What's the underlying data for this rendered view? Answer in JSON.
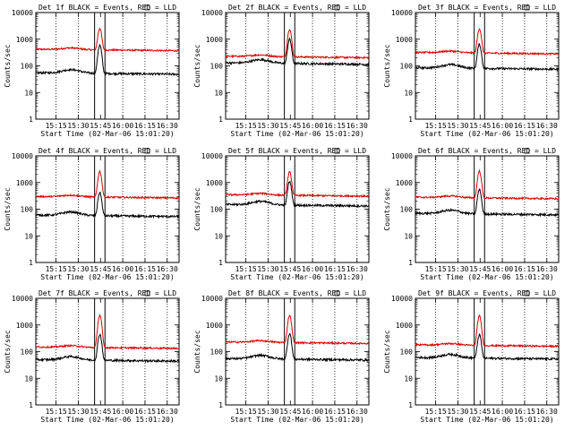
{
  "chart_data": {
    "type": "line",
    "start_time_label": "Start Time (02-Mar-06 15:01:20)",
    "ylabel": "Counts/sec",
    "y_scale": "log",
    "ylim": [
      1,
      10000
    ],
    "y_ticks": [
      {
        "value": 1,
        "label": "1"
      },
      {
        "value": 10,
        "label": "10"
      },
      {
        "value": 100,
        "label": "100"
      },
      {
        "value": 1000,
        "label": "1000"
      },
      {
        "value": 10000,
        "label": "10000"
      }
    ],
    "xlim": [
      "15:01:20",
      "16:38:00"
    ],
    "x_ticks": [
      "15:15",
      "15:30",
      "15:45",
      "16:00",
      "16:15",
      "16:30"
    ],
    "x_gridlines": [
      "15:15",
      "15:30",
      "16:00",
      "16:15",
      "16:30"
    ],
    "bracket_times": [
      "15:41",
      "15:48"
    ],
    "panels": [
      {
        "title": "Det 1f BLACK = Events, RED = LLD",
        "red_base": 420,
        "red_peak": 2600,
        "black_base": 55,
        "black_peak": 600
      },
      {
        "title": "Det 2f BLACK = Events, RED = LLD",
        "red_base": 230,
        "red_peak": 2400,
        "black_base": 130,
        "black_peak": 1000
      },
      {
        "title": "Det 3f BLACK = Events, RED = LLD",
        "red_base": 320,
        "red_peak": 2500,
        "black_base": 85,
        "black_peak": 650
      },
      {
        "title": "Det 4f BLACK = Events, RED = LLD",
        "red_base": 300,
        "red_peak": 2600,
        "black_base": 60,
        "black_peak": 420
      },
      {
        "title": "Det 5f BLACK = Events, RED = LLD",
        "red_base": 350,
        "red_peak": 2500,
        "black_base": 150,
        "black_peak": 1100
      },
      {
        "title": "Det 6f BLACK = Events, RED = LLD",
        "red_base": 280,
        "red_peak": 2700,
        "black_base": 70,
        "black_peak": 550
      },
      {
        "title": "Det 7f BLACK = Events, RED = LLD",
        "red_base": 150,
        "red_peak": 2300,
        "black_base": 50,
        "black_peak": 450
      },
      {
        "title": "Det 8f BLACK = Events, RED = LLD",
        "red_base": 230,
        "red_peak": 2300,
        "black_base": 55,
        "black_peak": 480
      },
      {
        "title": "Det 9f BLACK = Events, RED = LLD",
        "red_base": 180,
        "red_peak": 2200,
        "black_base": 60,
        "black_peak": 430
      }
    ]
  },
  "colors": {
    "events": "#000000",
    "lld": "#e00000"
  }
}
